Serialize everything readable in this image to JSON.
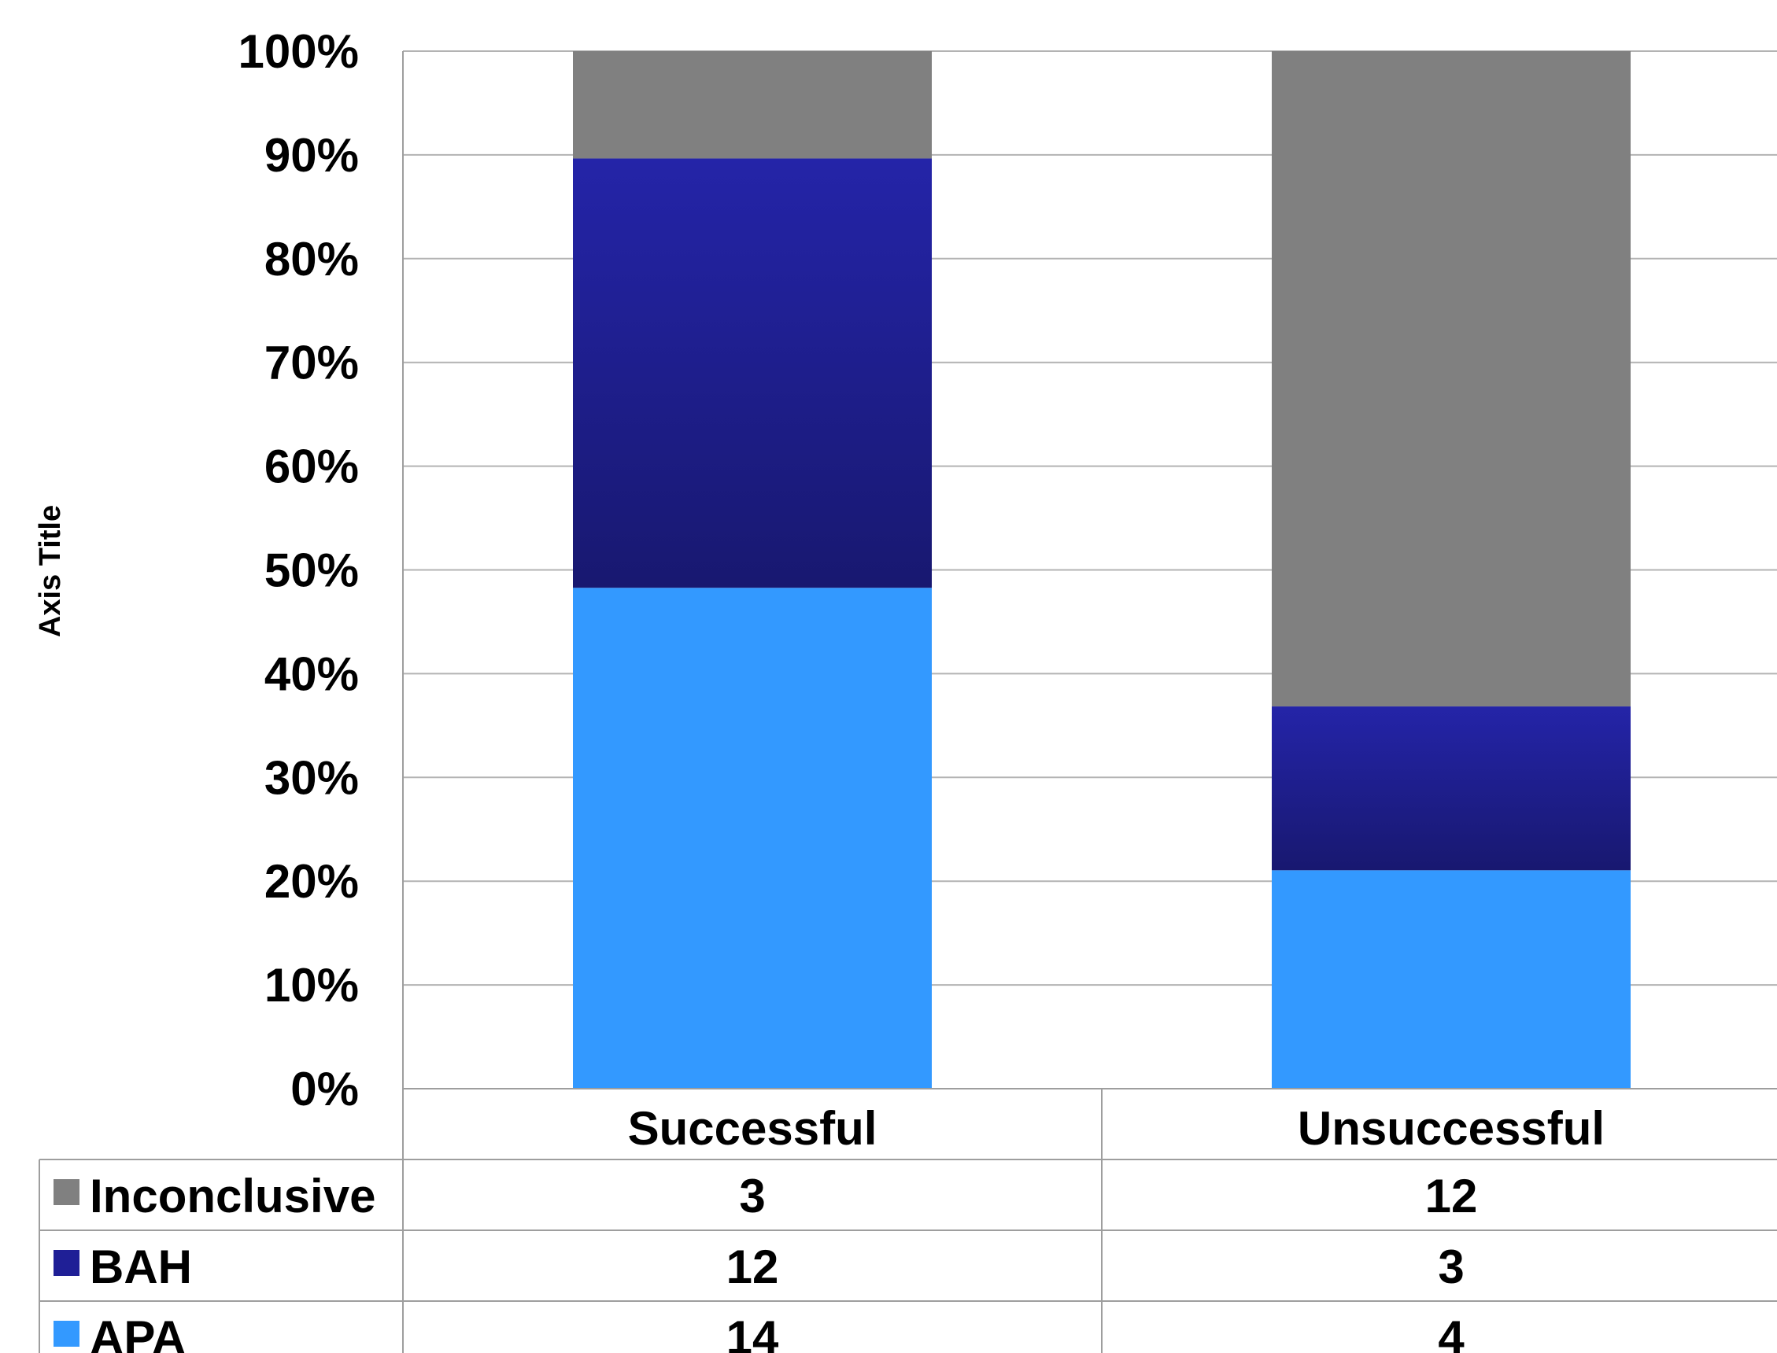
{
  "chart_data": {
    "type": "bar",
    "stacking": "percent",
    "title": "",
    "xlabel": "",
    "ylabel": "Axis Title",
    "ylim": [
      0,
      100
    ],
    "yticks": [
      "0%",
      "10%",
      "20%",
      "30%",
      "40%",
      "50%",
      "60%",
      "70%",
      "80%",
      "90%",
      "100%"
    ],
    "grid": true,
    "legend": "data-table",
    "categories": [
      "Successful",
      "Unsuccessful"
    ],
    "series": [
      {
        "name": "APA",
        "values": [
          14,
          4
        ],
        "color": "#3399ff"
      },
      {
        "name": "BAH",
        "values": [
          12,
          3
        ],
        "color": "#1f1f96"
      },
      {
        "name": "Inconclusive",
        "values": [
          3,
          12
        ],
        "color": "#808080"
      }
    ],
    "table_row_order": [
      "Inconclusive",
      "BAH",
      "APA"
    ]
  }
}
